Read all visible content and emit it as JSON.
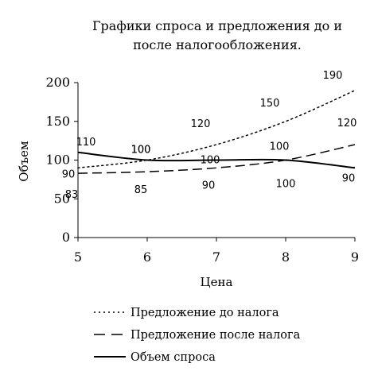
{
  "chart_data": {
    "type": "line",
    "title_lines": [
      "Графики спроса и предложения до и",
      "после налогообложения."
    ],
    "xlabel": "Цена",
    "ylabel": "Объем",
    "x": [
      5,
      6,
      7,
      8,
      9
    ],
    "xlim": [
      5,
      9
    ],
    "ylim": [
      0,
      200
    ],
    "yticks": [
      0,
      50,
      100,
      150,
      200
    ],
    "grid": false,
    "legend_position": "bottom",
    "series": [
      {
        "name": "Предложение до налога",
        "style": "dotted",
        "values": [
          90,
          100,
          120,
          150,
          190
        ],
        "labels": [
          "90",
          "100",
          "120",
          "150",
          "190"
        ]
      },
      {
        "name": "Предложение после налога",
        "style": "dashed",
        "values": [
          83,
          85,
          90,
          100,
          120
        ],
        "labels": [
          "83",
          "85",
          "90",
          "100",
          "120"
        ]
      },
      {
        "name": "Объем спроса",
        "style": "solid",
        "values": [
          110,
          100,
          100,
          100,
          90
        ],
        "labels": [
          "110",
          "100",
          "100",
          "100",
          "90"
        ]
      }
    ]
  }
}
